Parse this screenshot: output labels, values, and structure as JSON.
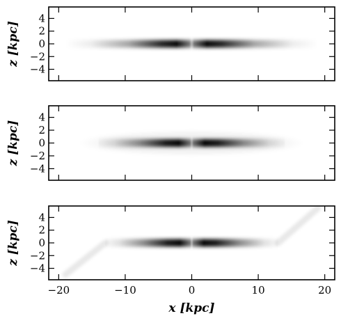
{
  "chart_data": [
    {
      "type": "heatmap",
      "ylabel": "z [kpc]",
      "xlim": [
        -21.5,
        21.5
      ],
      "ylim": [
        -5.8,
        5.8
      ],
      "y_ticks": [
        -4,
        -2,
        0,
        2,
        4
      ],
      "x_ticks": [
        -20,
        -10,
        0,
        10,
        20
      ],
      "show_x_tick_labels": false,
      "colormap": "grayscale (black = dense)",
      "structure": "thin disk; dark lobes peak at |x| ≈ 3 kpc with a narrow gap at x = 0; faint wings extend to |x| ≈ 19 kpc",
      "disk": {
        "half_length_kpc": 19,
        "peak_x_kpc": 3,
        "vertical_half_thickness_kpc": 0.6
      }
    },
    {
      "type": "heatmap",
      "ylabel": "z [kpc]",
      "xlim": [
        -21.5,
        21.5
      ],
      "ylim": [
        -5.8,
        5.8
      ],
      "y_ticks": [
        -4,
        -2,
        0,
        2,
        4
      ],
      "x_ticks": [
        -20,
        -10,
        0,
        10,
        20
      ],
      "show_x_tick_labels": false,
      "colormap": "grayscale (black = dense)",
      "structure": "thin disk truncated near |x| ≈ 14 kpc, surrounded by a faint elliptical halo out to |x| ≈ 17 kpc",
      "disk": {
        "half_length_kpc": 14,
        "peak_x_kpc": 3,
        "vertical_half_thickness_kpc": 0.6
      },
      "halo": {
        "half_length_kpc": 17,
        "half_height_kpc": 2
      }
    },
    {
      "type": "heatmap",
      "xlabel": "x [kpc]",
      "ylabel": "z [kpc]",
      "xlim": [
        -21.5,
        21.5
      ],
      "ylim": [
        -5.8,
        5.8
      ],
      "y_ticks": [
        -4,
        -2,
        0,
        2,
        4
      ],
      "x_ticks": [
        -20,
        -10,
        0,
        10,
        20
      ],
      "x_tick_labels": [
        "−20",
        "−10",
        "0",
        "10",
        "20"
      ],
      "show_x_tick_labels": true,
      "colormap": "grayscale (black = dense)",
      "structure": "thin disk truncated near |x| ≈ 13 kpc with faint warp arms from (13, 0) to (19, 5.5) and from (−13, 0) to (−19, −5)",
      "disk": {
        "half_length_kpc": 13,
        "peak_x_kpc": 3,
        "vertical_half_thickness_kpc": 0.6
      },
      "warp_arms": [
        {
          "from": [
            13,
            0
          ],
          "to": [
            19,
            5.5
          ]
        },
        {
          "from": [
            -13,
            0
          ],
          "to": [
            -19,
            -5
          ]
        }
      ]
    }
  ]
}
